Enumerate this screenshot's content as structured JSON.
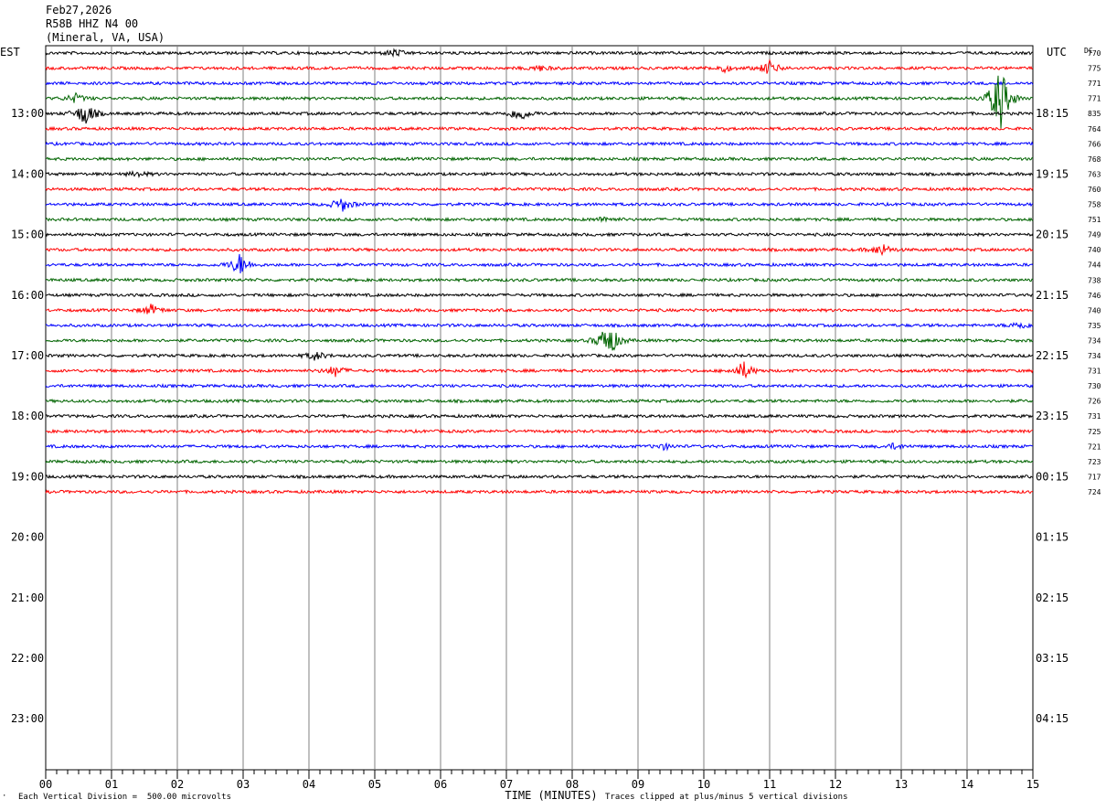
{
  "header": {
    "date": "Feb27,2026",
    "station": "R58B HHZ N4 00",
    "location": "(Mineral, VA, USA)"
  },
  "chart_data": {
    "type": "line",
    "left_axis_label": "EST",
    "right_axis_label": "UTC",
    "dc_label": "DC",
    "xlabel": "TIME (MINUTES)",
    "x_ticks": [
      "00",
      "01",
      "02",
      "03",
      "04",
      "05",
      "06",
      "07",
      "08",
      "09",
      "10",
      "11",
      "12",
      "13",
      "14",
      "15"
    ],
    "xlim": [
      0,
      15
    ],
    "est_hours": [
      "13:00",
      "14:00",
      "15:00",
      "16:00",
      "17:00",
      "18:00",
      "19:00",
      "20:00",
      "21:00",
      "22:00",
      "23:00"
    ],
    "utc_hours": [
      "18:15",
      "19:15",
      "20:15",
      "21:15",
      "22:15",
      "23:15",
      "00:15",
      "01:15",
      "02:15",
      "03:15",
      "04:15"
    ],
    "trace_colors": [
      "#000000",
      "#ff0000",
      "#0000ff",
      "#006400"
    ],
    "dc_values": [
      "770",
      "775",
      "771",
      "771",
      "835",
      "764",
      "766",
      "768",
      "763",
      "760",
      "758",
      "751",
      "749",
      "740",
      "744",
      "738",
      "746",
      "740",
      "735",
      "734",
      "734",
      "731",
      "730",
      "726",
      "731",
      "725",
      "721",
      "723",
      "717",
      "724"
    ],
    "events": [
      {
        "trace": 0,
        "minute": 5.3,
        "amp": 4
      },
      {
        "trace": 1,
        "minute": 7.5,
        "amp": 3
      },
      {
        "trace": 1,
        "minute": 10.3,
        "amp": 4
      },
      {
        "trace": 1,
        "minute": 11.0,
        "amp": 8
      },
      {
        "trace": 3,
        "minute": 0.45,
        "amp": 5
      },
      {
        "trace": 3,
        "minute": 14.5,
        "amp": 40
      },
      {
        "trace": 4,
        "minute": 0.6,
        "amp": 14
      },
      {
        "trace": 4,
        "minute": 7.2,
        "amp": 9
      },
      {
        "trace": 8,
        "minute": 1.4,
        "amp": 3
      },
      {
        "trace": 10,
        "minute": 4.5,
        "amp": 8
      },
      {
        "trace": 11,
        "minute": 8.5,
        "amp": 3
      },
      {
        "trace": 13,
        "minute": 12.7,
        "amp": 7
      },
      {
        "trace": 14,
        "minute": 2.95,
        "amp": 12
      },
      {
        "trace": 17,
        "minute": 1.6,
        "amp": 6
      },
      {
        "trace": 18,
        "minute": 14.8,
        "amp": 4
      },
      {
        "trace": 19,
        "minute": 8.55,
        "amp": 22
      },
      {
        "trace": 20,
        "minute": 4.1,
        "amp": 5
      },
      {
        "trace": 21,
        "minute": 4.4,
        "amp": 6
      },
      {
        "trace": 21,
        "minute": 10.6,
        "amp": 10
      },
      {
        "trace": 26,
        "minute": 9.4,
        "amp": 3
      },
      {
        "trace": 26,
        "minute": 12.9,
        "amp": 3
      }
    ]
  },
  "footer": {
    "scale_note": "Each Vertical Division =  500.00 microvolts",
    "clip_note": "Traces clipped at plus/minus 5 vertical divisions"
  }
}
